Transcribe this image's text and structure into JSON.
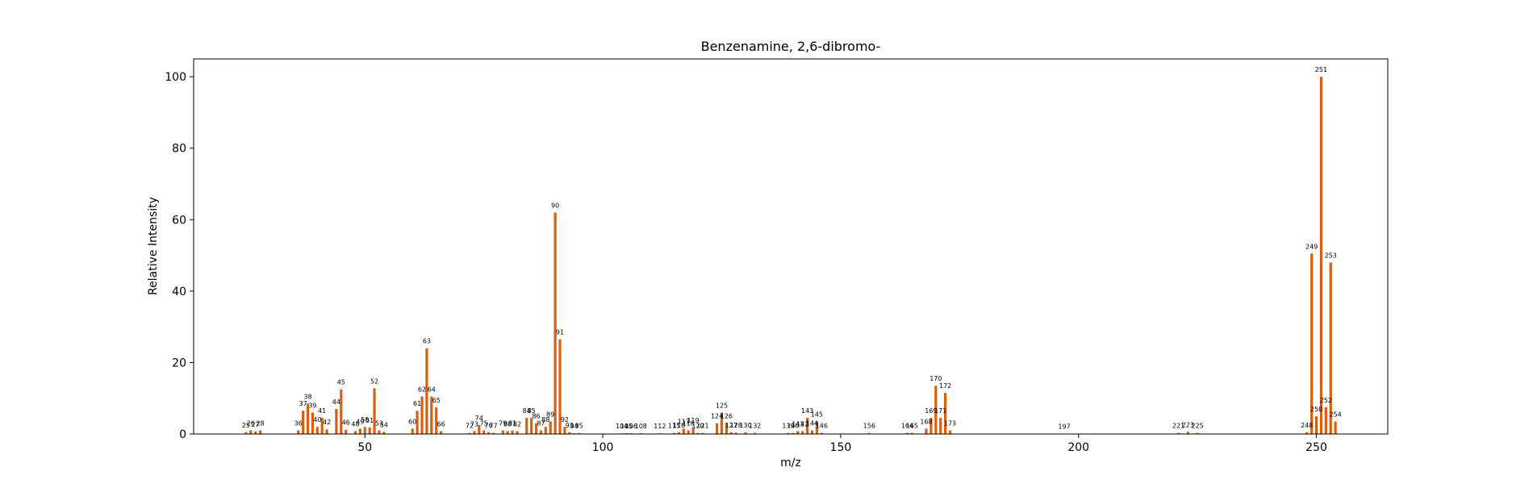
{
  "chart_data": {
    "type": "bar",
    "title": "Benzenamine, 2,6-dibromo-",
    "xlabel": "m/z",
    "ylabel": "Relative Intensity",
    "xlim": [
      14,
      265
    ],
    "ylim": [
      0,
      105
    ],
    "xticks": [
      50,
      100,
      150,
      200,
      250
    ],
    "yticks": [
      0,
      20,
      40,
      60,
      80,
      100
    ],
    "bar_color": "#d95f0e",
    "grid": false,
    "legend": "none",
    "peaks": [
      {
        "mz": 25,
        "intensity": 0.5
      },
      {
        "mz": 26,
        "intensity": 1.0
      },
      {
        "mz": 27,
        "intensity": 0.7
      },
      {
        "mz": 28,
        "intensity": 1.0
      },
      {
        "mz": 36,
        "intensity": 1.0
      },
      {
        "mz": 37,
        "intensity": 6.5
      },
      {
        "mz": 38,
        "intensity": 8.5
      },
      {
        "mz": 39,
        "intensity": 6.0
      },
      {
        "mz": 40,
        "intensity": 2.0
      },
      {
        "mz": 41,
        "intensity": 4.5
      },
      {
        "mz": 42,
        "intensity": 1.3
      },
      {
        "mz": 44,
        "intensity": 7.0
      },
      {
        "mz": 45,
        "intensity": 12.5
      },
      {
        "mz": 46,
        "intensity": 1.2
      },
      {
        "mz": 48,
        "intensity": 0.8
      },
      {
        "mz": 49,
        "intensity": 1.5
      },
      {
        "mz": 50,
        "intensity": 2.0
      },
      {
        "mz": 51,
        "intensity": 1.8
      },
      {
        "mz": 52,
        "intensity": 12.8
      },
      {
        "mz": 53,
        "intensity": 1.0
      },
      {
        "mz": 54,
        "intensity": 0.6
      },
      {
        "mz": 60,
        "intensity": 1.5
      },
      {
        "mz": 61,
        "intensity": 6.5
      },
      {
        "mz": 62,
        "intensity": 10.5
      },
      {
        "mz": 63,
        "intensity": 24.0
      },
      {
        "mz": 64,
        "intensity": 10.5
      },
      {
        "mz": 65,
        "intensity": 7.5
      },
      {
        "mz": 66,
        "intensity": 0.8
      },
      {
        "mz": 72,
        "intensity": 0.3
      },
      {
        "mz": 73,
        "intensity": 0.8
      },
      {
        "mz": 74,
        "intensity": 2.5
      },
      {
        "mz": 75,
        "intensity": 1.0
      },
      {
        "mz": 76,
        "intensity": 0.5
      },
      {
        "mz": 77,
        "intensity": 0.3
      },
      {
        "mz": 79,
        "intensity": 1.0
      },
      {
        "mz": 80,
        "intensity": 0.8
      },
      {
        "mz": 81,
        "intensity": 1.0
      },
      {
        "mz": 82,
        "intensity": 0.8
      },
      {
        "mz": 84,
        "intensity": 4.5
      },
      {
        "mz": 85,
        "intensity": 4.5
      },
      {
        "mz": 86,
        "intensity": 3.0
      },
      {
        "mz": 87,
        "intensity": 1.0
      },
      {
        "mz": 88,
        "intensity": 2.0
      },
      {
        "mz": 89,
        "intensity": 3.5
      },
      {
        "mz": 90,
        "intensity": 62.0
      },
      {
        "mz": 91,
        "intensity": 26.5
      },
      {
        "mz": 92,
        "intensity": 2.0
      },
      {
        "mz": 93,
        "intensity": 0.5
      },
      {
        "mz": 94,
        "intensity": 0.2
      },
      {
        "mz": 95,
        "intensity": 0.3
      },
      {
        "mz": 104,
        "intensity": 0.2
      },
      {
        "mz": 105,
        "intensity": 0.2
      },
      {
        "mz": 106,
        "intensity": 0.2
      },
      {
        "mz": 108,
        "intensity": 0.2
      },
      {
        "mz": 112,
        "intensity": 0.2
      },
      {
        "mz": 115,
        "intensity": 0.3
      },
      {
        "mz": 116,
        "intensity": 0.5
      },
      {
        "mz": 117,
        "intensity": 1.5
      },
      {
        "mz": 118,
        "intensity": 1.0
      },
      {
        "mz": 119,
        "intensity": 1.8
      },
      {
        "mz": 120,
        "intensity": 0.3
      },
      {
        "mz": 121,
        "intensity": 0.3
      },
      {
        "mz": 124,
        "intensity": 3.0
      },
      {
        "mz": 125,
        "intensity": 6.0
      },
      {
        "mz": 126,
        "intensity": 3.0
      },
      {
        "mz": 127,
        "intensity": 0.5
      },
      {
        "mz": 128,
        "intensity": 0.4
      },
      {
        "mz": 130,
        "intensity": 0.5
      },
      {
        "mz": 132,
        "intensity": 0.3
      },
      {
        "mz": 139,
        "intensity": 0.3
      },
      {
        "mz": 140,
        "intensity": 0.3
      },
      {
        "mz": 141,
        "intensity": 0.8
      },
      {
        "mz": 142,
        "intensity": 0.8
      },
      {
        "mz": 143,
        "intensity": 4.5
      },
      {
        "mz": 144,
        "intensity": 1.0
      },
      {
        "mz": 145,
        "intensity": 3.5
      },
      {
        "mz": 146,
        "intensity": 0.3
      },
      {
        "mz": 156,
        "intensity": 0.3
      },
      {
        "mz": 164,
        "intensity": 0.3
      },
      {
        "mz": 165,
        "intensity": 0.3
      },
      {
        "mz": 168,
        "intensity": 1.5
      },
      {
        "mz": 169,
        "intensity": 4.5
      },
      {
        "mz": 170,
        "intensity": 13.5
      },
      {
        "mz": 171,
        "intensity": 4.5
      },
      {
        "mz": 172,
        "intensity": 11.5
      },
      {
        "mz": 173,
        "intensity": 1.0
      },
      {
        "mz": 197,
        "intensity": 0.1
      },
      {
        "mz": 221,
        "intensity": 0.3
      },
      {
        "mz": 223,
        "intensity": 0.6
      },
      {
        "mz": 225,
        "intensity": 0.3
      },
      {
        "mz": 248,
        "intensity": 0.5
      },
      {
        "mz": 249,
        "intensity": 50.5
      },
      {
        "mz": 250,
        "intensity": 5.0
      },
      {
        "mz": 251,
        "intensity": 100.0
      },
      {
        "mz": 252,
        "intensity": 7.5
      },
      {
        "mz": 253,
        "intensity": 48.0
      },
      {
        "mz": 254,
        "intensity": 3.5
      }
    ]
  }
}
